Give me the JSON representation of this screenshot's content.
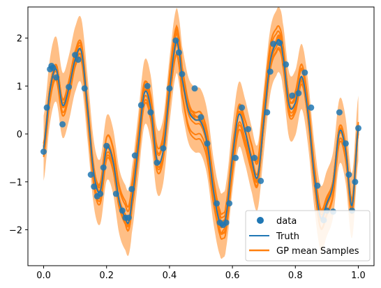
{
  "chart_data": {
    "type": "scatter",
    "title": "",
    "xlabel": "",
    "ylabel": "",
    "xlim": [
      -0.05,
      1.05
    ],
    "ylim": [
      -2.75,
      2.65
    ],
    "x_ticks": [
      0.0,
      0.2,
      0.4,
      0.6,
      0.8,
      1.0
    ],
    "x_tick_labels": [
      "0.0",
      "0.2",
      "0.4",
      "0.6",
      "0.8",
      "1.0"
    ],
    "y_ticks": [
      -2,
      -1,
      0,
      1,
      2
    ],
    "y_tick_labels": [
      "−2",
      "−1",
      "0",
      "1",
      "2"
    ],
    "grid": false,
    "legend_position": "lower-right",
    "legend": [
      {
        "label": "data",
        "kind": "marker",
        "color": "#1f77b4"
      },
      {
        "label": "Truth",
        "kind": "line",
        "color": "#1f77b4"
      },
      {
        "label": "GP mean Samples",
        "kind": "line",
        "color": "#ff7f0e"
      }
    ],
    "colors": {
      "data": "#1f77b4",
      "truth": "#1f77b4",
      "samples": "#ff7f0e",
      "band": "#ff7f0e"
    },
    "band_half_width": 0.68,
    "sample_offsets": [
      0.0,
      0.18,
      -0.2,
      0.32,
      -0.34,
      0.1,
      -0.08,
      0.24,
      -0.26,
      0.4
    ],
    "series": [
      {
        "name": "data",
        "x": [
          0.0,
          0.01,
          0.02,
          0.025,
          0.03,
          0.04,
          0.06,
          0.08,
          0.1,
          0.11,
          0.13,
          0.15,
          0.16,
          0.17,
          0.18,
          0.19,
          0.2,
          0.23,
          0.25,
          0.26,
          0.27,
          0.28,
          0.29,
          0.31,
          0.33,
          0.34,
          0.36,
          0.38,
          0.4,
          0.42,
          0.43,
          0.44,
          0.48,
          0.5,
          0.52,
          0.55,
          0.56,
          0.57,
          0.58,
          0.59,
          0.61,
          0.63,
          0.65,
          0.67,
          0.69,
          0.71,
          0.72,
          0.73,
          0.75,
          0.77,
          0.79,
          0.81,
          0.83,
          0.85,
          0.87,
          0.89,
          0.9,
          0.92,
          0.94,
          0.96,
          0.97,
          0.98,
          0.99,
          1.0
        ],
        "y": [
          -0.37,
          0.55,
          1.35,
          1.42,
          1.38,
          1.18,
          0.2,
          0.98,
          1.65,
          1.55,
          0.95,
          -0.85,
          -1.1,
          -1.3,
          -1.25,
          -0.7,
          -0.25,
          -1.25,
          -1.6,
          -1.75,
          -1.75,
          -1.15,
          -0.45,
          0.6,
          1.0,
          0.45,
          -0.6,
          -0.3,
          0.95,
          1.95,
          1.7,
          1.25,
          0.95,
          0.35,
          -0.2,
          -1.45,
          -1.85,
          -1.9,
          -1.85,
          -1.45,
          -0.5,
          0.55,
          0.1,
          -0.5,
          -0.98,
          0.45,
          1.3,
          1.88,
          1.9,
          1.45,
          0.8,
          0.85,
          1.28,
          0.55,
          -1.08,
          -1.8,
          -1.6,
          -1.62,
          0.45,
          -0.2,
          -0.85,
          -1.6,
          -1.0,
          0.12
        ]
      },
      {
        "name": "Truth",
        "x": [
          0.0,
          0.02,
          0.04,
          0.06,
          0.08,
          0.1,
          0.12,
          0.14,
          0.16,
          0.18,
          0.2,
          0.22,
          0.24,
          0.26,
          0.27,
          0.28,
          0.3,
          0.32,
          0.34,
          0.36,
          0.38,
          0.4,
          0.42,
          0.43,
          0.44,
          0.46,
          0.48,
          0.5,
          0.52,
          0.54,
          0.56,
          0.57,
          0.58,
          0.6,
          0.62,
          0.64,
          0.66,
          0.68,
          0.7,
          0.72,
          0.74,
          0.75,
          0.76,
          0.78,
          0.8,
          0.82,
          0.84,
          0.86,
          0.88,
          0.9,
          0.92,
          0.94,
          0.96,
          0.98,
          1.0
        ],
        "y": [
          -0.3,
          0.9,
          1.35,
          0.6,
          0.95,
          1.55,
          1.72,
          0.5,
          -0.85,
          -1.2,
          -0.3,
          -0.55,
          -1.4,
          -1.75,
          -1.85,
          -1.4,
          -0.3,
          0.85,
          0.55,
          -0.55,
          -0.35,
          0.9,
          1.9,
          1.75,
          1.15,
          0.5,
          0.3,
          0.25,
          -0.2,
          -1.2,
          -1.85,
          -1.9,
          -1.7,
          -0.5,
          0.4,
          0.05,
          -0.5,
          -0.9,
          0.3,
          1.5,
          1.9,
          1.95,
          1.65,
          0.6,
          0.65,
          1.2,
          0.45,
          -0.85,
          -1.75,
          -1.45,
          -1.05,
          0.05,
          -0.35,
          -1.5,
          0.12
        ]
      }
    ]
  }
}
